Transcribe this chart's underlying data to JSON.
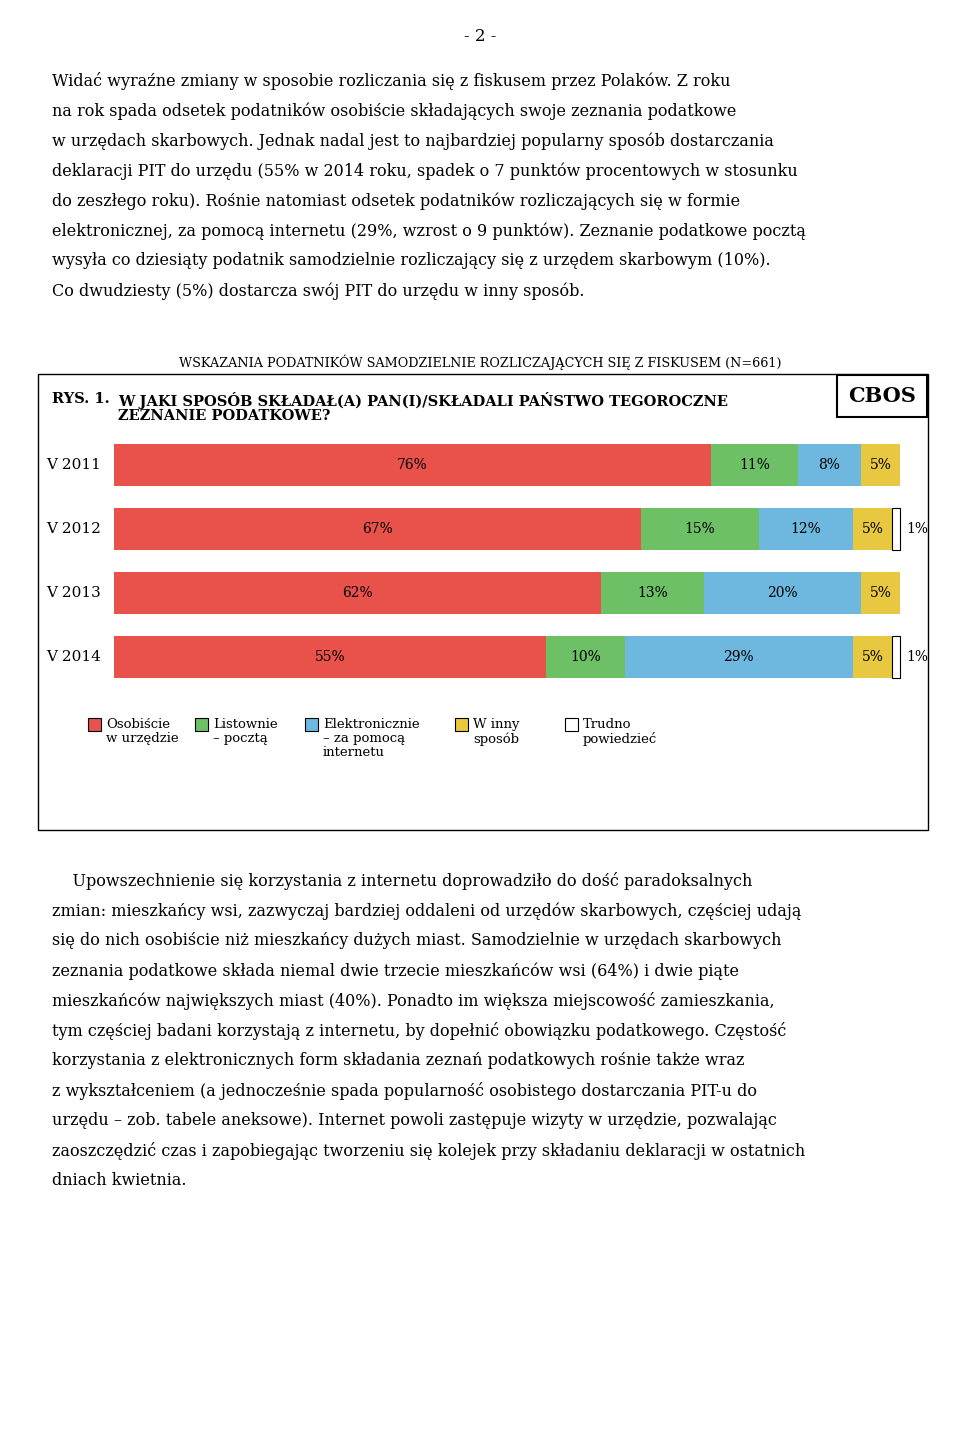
{
  "page_number": "- 2 -",
  "para1_lines": [
    "Widać wyraźne zmiany w sposobie rozliczania się z fiskusem przez Polaków. Z roku",
    "na rok spada odsetek podatników osobiście składających swoje zeznania podatkowe",
    "w urzędach skarbowych. Jednak nadal jest to najbardziej popularny sposób dostarczania",
    "deklaracji PIT do urzędu (55% w 2014 roku, spadek o 7 punktów procentowych w stosunku",
    "do zeszłego roku). Rośnie natomiast odsetek podatników rozliczających się w formie",
    "elektronicznej, za pomocą internetu (29%, wzrost o 9 punktów). Zeznanie podatkowe pocztą",
    "wysyła co dziesiąty podatnik samodzielnie rozliczający się z urzędem skarbowym (10%).",
    "Co dwudziesty (5%) dostarcza swój PIT do urzędu w inny sposób."
  ],
  "chart_subtitle": "WSKAZANIA PODATNIKÓW SAMODZIELNIE ROZLICZAJĄCYCH SIĘ Z FISKUSEM (N=661)",
  "cbos_label": "CBOS",
  "question_label": "RYS. 1.",
  "question_line1": "W JAKI SPOSÓB SKŁADAŁ(A) PAN(I)/SKŁADALI PAŃSTWO TEGOROCZNE",
  "question_line2": "ZEZNANIE PODATKOWE?",
  "years": [
    "V 2011",
    "V 2012",
    "V 2013",
    "V 2014"
  ],
  "data": {
    "osobiscie": [
      76,
      67,
      62,
      55
    ],
    "listownie": [
      11,
      15,
      13,
      10
    ],
    "elektronicznie": [
      8,
      12,
      20,
      29
    ],
    "winny": [
      5,
      5,
      5,
      5
    ],
    "trudno": [
      0,
      1,
      0,
      1
    ]
  },
  "colors": {
    "osobiscie": "#E8524A",
    "listownie": "#6DC066",
    "elektronicznie": "#6EB8E0",
    "winny": "#E8C840",
    "trudno": "#FFFFFF"
  },
  "legend_labels": {
    "osobiscie": "Osobiście\nw urzędzie",
    "listownie": "Listownie\n– pocztą",
    "elektronicznie": "Elektronicznie\n– za pomocą\ninternetu",
    "winny": "W inny\nsposób",
    "trudno": "Trudno\npowiedzieć"
  },
  "leg_x_positions": [
    88,
    195,
    305,
    455,
    565
  ],
  "para2_lines": [
    "    Upowszechnienie się korzystania z internetu doprowadziło do dość paradoksalnych",
    "zmian: mieszkańcy wsi, zazwyczaj bardziej oddaleni od urzędów skarbowych, częściej udają",
    "się do nich osobiście niż mieszkańcy dużych miast. Samodzielnie w urzędach skarbowych",
    "zeznania podatkowe składa niemal dwie trzecie mieszkańców wsi (64%) i dwie piąte",
    "mieszkańców największych miast (40%). Ponadto im większa miejscowość zamieszkania,",
    "tym częściej badani korzystają z internetu, by dopełnić obowiązku podatkowego. Częstość",
    "korzystania z elektronicznych form składania zeznań podatkowych rośnie także wraz",
    "z wykształceniem (a jednocześnie spada popularność osobistego dostarczania PIT-u do",
    "urzędu – zob. tabele aneksowe). Internet powoli zastępuje wizyty w urzędzie, pozwalając",
    "zaoszczędzić czas i zapobiegając tworzeniu się kolejek przy składaniu deklaracji w ostatnich",
    "dniach kwietnia."
  ],
  "bg_color": "#FFFFFF",
  "text_color": "#000000"
}
